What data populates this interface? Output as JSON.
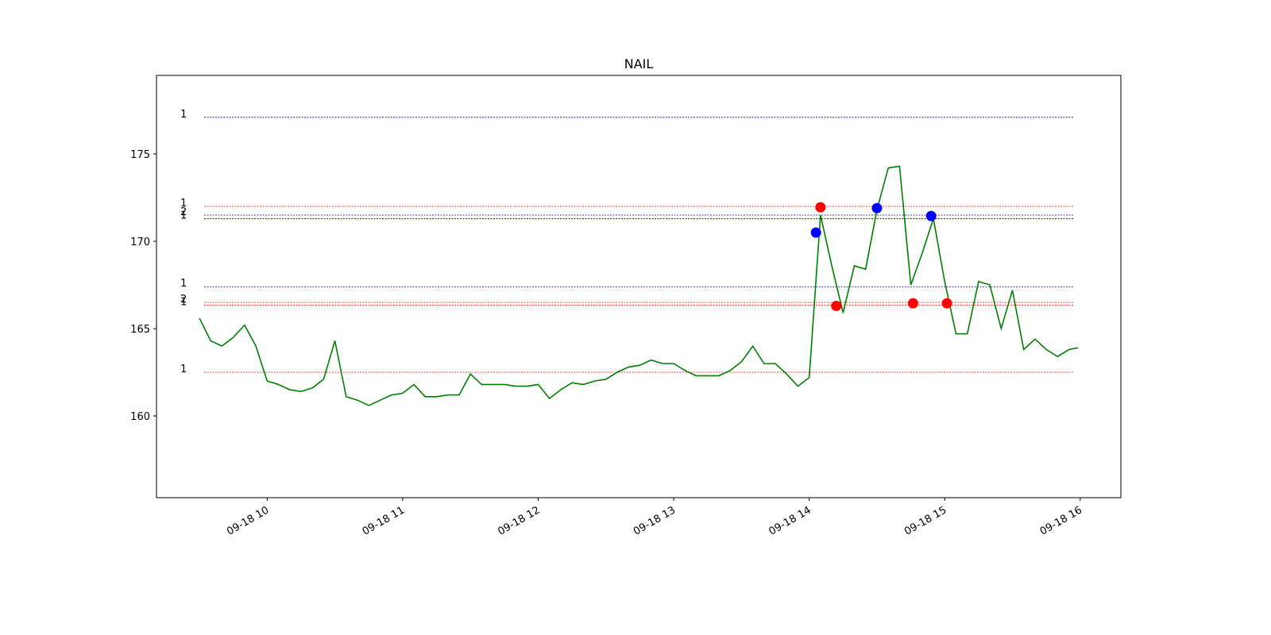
{
  "chart_data": {
    "type": "line",
    "title": "NAIL",
    "x": [
      "09-18 09:30",
      "09-18 09:35",
      "09-18 09:40",
      "09-18 09:45",
      "09-18 09:50",
      "09-18 09:55",
      "09-18 10:00",
      "09-18 10:05",
      "09-18 10:10",
      "09-18 10:15",
      "09-18 10:20",
      "09-18 10:25",
      "09-18 10:30",
      "09-18 10:35",
      "09-18 10:40",
      "09-18 10:45",
      "09-18 10:50",
      "09-18 10:55",
      "09-18 11:00",
      "09-18 11:05",
      "09-18 11:10",
      "09-18 11:15",
      "09-18 11:20",
      "09-18 11:25",
      "09-18 11:30",
      "09-18 11:35",
      "09-18 11:40",
      "09-18 11:45",
      "09-18 11:50",
      "09-18 11:55",
      "09-18 12:00",
      "09-18 12:05",
      "09-18 12:10",
      "09-18 12:15",
      "09-18 12:20",
      "09-18 12:25",
      "09-18 12:30",
      "09-18 12:35",
      "09-18 12:40",
      "09-18 12:45",
      "09-18 12:50",
      "09-18 12:55",
      "09-18 13:00",
      "09-18 13:05",
      "09-18 13:10",
      "09-18 13:15",
      "09-18 13:20",
      "09-18 13:25",
      "09-18 13:30",
      "09-18 13:35",
      "09-18 13:40",
      "09-18 13:45",
      "09-18 13:50",
      "09-18 13:55",
      "09-18 14:00",
      "09-18 14:05",
      "09-18 14:10",
      "09-18 14:15",
      "09-18 14:20",
      "09-18 14:25",
      "09-18 14:30",
      "09-18 14:35",
      "09-18 14:40",
      "09-18 14:45",
      "09-18 14:50",
      "09-18 14:55",
      "09-18 15:00",
      "09-18 15:05",
      "09-18 15:10",
      "09-18 15:15",
      "09-18 15:20",
      "09-18 15:25",
      "09-18 15:30",
      "09-18 15:35",
      "09-18 15:40",
      "09-18 15:45",
      "09-18 15:50",
      "09-18 15:55",
      "09-18 15:59"
    ],
    "series": [
      {
        "color": "#008000",
        "values": [
          165.6,
          164.3,
          164.0,
          164.5,
          165.2,
          164.0,
          162.0,
          161.8,
          161.5,
          161.4,
          161.6,
          162.1,
          164.3,
          161.1,
          160.9,
          160.6,
          160.9,
          161.2,
          161.3,
          161.8,
          161.1,
          161.1,
          161.2,
          161.2,
          162.4,
          161.8,
          161.8,
          161.8,
          161.7,
          161.7,
          161.8,
          161.0,
          161.5,
          161.9,
          161.8,
          162.0,
          162.1,
          162.5,
          162.8,
          162.9,
          163.2,
          163.0,
          163.0,
          162.6,
          162.3,
          162.3,
          162.3,
          162.6,
          163.1,
          164.0,
          163.0,
          163.0,
          162.4,
          161.7,
          162.2,
          171.5,
          168.6,
          165.9,
          168.6,
          168.4,
          171.8,
          174.2,
          174.3,
          167.5,
          169.3,
          171.3,
          167.7,
          164.7,
          164.7,
          167.7,
          167.5,
          165.0,
          167.2,
          163.8,
          164.4,
          163.8,
          163.4,
          163.8,
          163.9
        ]
      }
    ],
    "hlines": [
      {
        "value": 177.1,
        "label": "1",
        "color": "#00008b"
      },
      {
        "value": 172.0,
        "label": "1",
        "color": "#ff0000"
      },
      {
        "value": 171.5,
        "label": "2",
        "color": "#00008b"
      },
      {
        "value": 171.3,
        "label": "1",
        "color": "#00008b"
      },
      {
        "value": 167.4,
        "label": "1",
        "color": "#00008b"
      },
      {
        "value": 166.5,
        "label": "2",
        "color": "#ff0000"
      },
      {
        "value": 166.35,
        "label": "1",
        "color": "#ff0000"
      },
      {
        "value": 162.5,
        "label": "1",
        "color": "#ff0000"
      }
    ],
    "points": [
      {
        "color": "#ff0000",
        "x": [
          "09-18 14:05",
          "09-18 14:12",
          "09-18 14:46",
          "09-18 15:01"
        ],
        "values": [
          171.95,
          166.3,
          166.45,
          166.45
        ]
      },
      {
        "color": "#0000ff",
        "x": [
          "09-18 14:03",
          "09-18 14:30",
          "09-18 14:54"
        ],
        "values": [
          170.5,
          171.9,
          171.45
        ]
      }
    ],
    "xlim": [
      "09-18 09:11",
      "09-18 16:18"
    ],
    "xticks": [
      {
        "value": "09-18 10:00",
        "label": "09-18 10"
      },
      {
        "value": "09-18 11:00",
        "label": "09-18 11"
      },
      {
        "value": "09-18 12:00",
        "label": "09-18 12"
      },
      {
        "value": "09-18 13:00",
        "label": "09-18 13"
      },
      {
        "value": "09-18 14:00",
        "label": "09-18 14"
      },
      {
        "value": "09-18 15:00",
        "label": "09-18 15"
      },
      {
        "value": "09-18 16:00",
        "label": "09-18 16"
      }
    ],
    "ylim": [
      155.32,
      179.5
    ],
    "yticks": [
      160,
      165,
      170,
      175
    ]
  }
}
